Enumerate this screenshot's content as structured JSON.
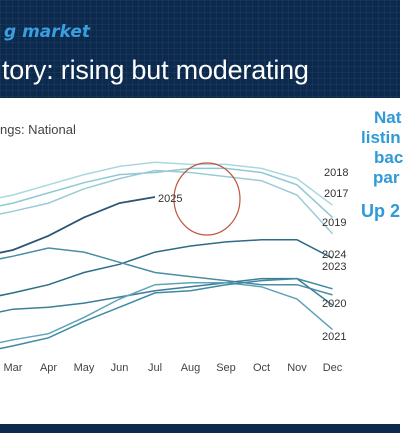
{
  "header": {
    "kicker": "g market",
    "title": "tory: rising but moderating"
  },
  "sidebar": {
    "lines": [
      "Nat",
      "listin",
      "bac",
      "par"
    ],
    "highlight": "Up 2"
  },
  "chart_data": {
    "type": "line",
    "subtitle": "ngs: National",
    "categories": [
      "Mar",
      "Apr",
      "May",
      "Jun",
      "Jul",
      "Aug",
      "Sep",
      "Oct",
      "Nov",
      "Dec"
    ],
    "ylim": [
      0,
      100
    ],
    "grid": false,
    "series": [
      {
        "name": "2018",
        "color": "#a9d8de",
        "values": [
          76,
          81,
          86,
          90,
          92,
          91,
          91,
          89,
          84,
          71
        ]
      },
      {
        "name": "2017",
        "color": "#8fc8d3",
        "values": [
          72,
          77,
          82,
          86,
          87,
          89,
          89,
          87,
          81,
          65
        ]
      },
      {
        "name": "2019",
        "color": "#9acbd6",
        "values": [
          68,
          72,
          79,
          84,
          88,
          87,
          85,
          83,
          76,
          57
        ]
      },
      {
        "name": "2025",
        "color": "#2c5573",
        "values": [
          49,
          56,
          65,
          72,
          75,
          null,
          null,
          null,
          null,
          null
        ]
      },
      {
        "name": "2024",
        "color": "#2d6c86",
        "values": [
          28,
          32,
          38,
          42,
          48,
          51,
          53,
          54,
          54,
          45
        ]
      },
      {
        "name": "2023",
        "color": "#4a8ea3",
        "values": [
          46,
          50,
          48,
          43,
          38,
          36,
          34,
          32,
          32,
          27
        ]
      },
      {
        "name": "2020",
        "color": "#3d7e96",
        "values": [
          20,
          21,
          23,
          26,
          29,
          31,
          33,
          35,
          35,
          22
        ]
      },
      {
        "name": "2021",
        "color": "#5fa3b8",
        "values": [
          5,
          8,
          16,
          25,
          32,
          33,
          33,
          31,
          25,
          10
        ]
      },
      {
        "name": "",
        "color": "#3f8aa2",
        "values": [
          2,
          6,
          14,
          21,
          28,
          29,
          32,
          34,
          35,
          30
        ]
      }
    ],
    "annotations": [
      {
        "label": "2025",
        "shape": "circle"
      }
    ]
  }
}
